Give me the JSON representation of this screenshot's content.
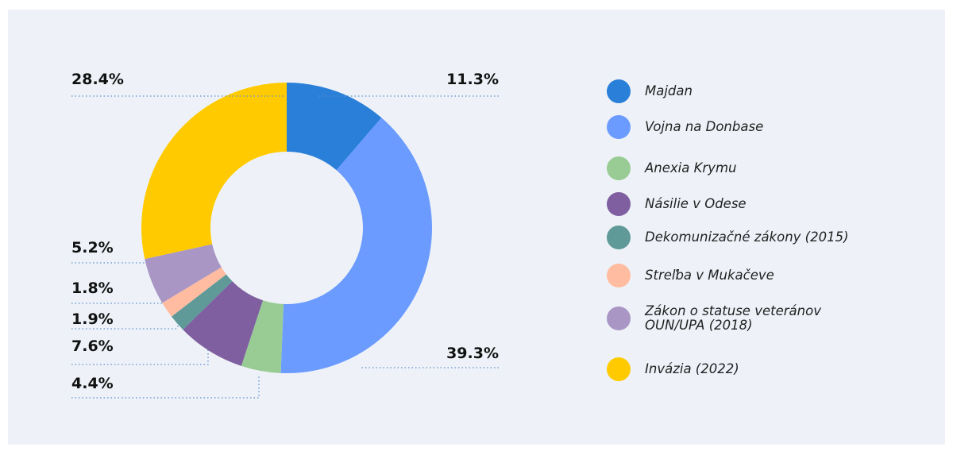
{
  "chart_data": {
    "type": "donut",
    "categories": [
      "Majdan",
      "Vojna na Donbase",
      "Anexia Krymu",
      "Násilie v Odese",
      "Dekomunizačné zákony (2015)",
      "Streľba v Mukačeve",
      "Zákon o statuse veteránov OUN/UPA (2018)",
      "Invázia (2022)"
    ],
    "values": [
      11.3,
      39.3,
      4.4,
      7.6,
      1.9,
      1.8,
      5.2,
      28.4
    ],
    "value_labels": [
      "11.3%",
      "39.3%",
      "4.4%",
      "7.6%",
      "1.9%",
      "1.8%",
      "5.2%",
      "28.4%"
    ],
    "colors": [
      "#2a7fd8",
      "#6b9bff",
      "#98cc94",
      "#7f5fa0",
      "#5f9a98",
      "#ffbca0",
      "#a996c4",
      "#ffcb00"
    ]
  }
}
